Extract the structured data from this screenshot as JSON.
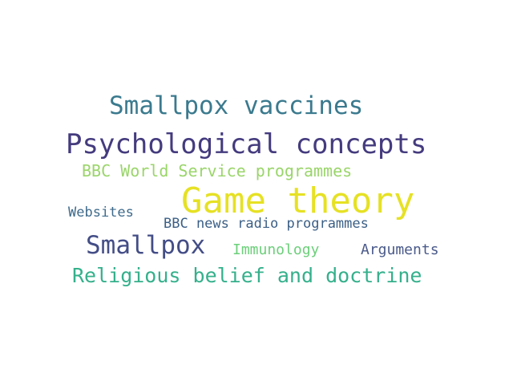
{
  "words": [
    {
      "text": "Smallpox vaccines",
      "color": "#3b7a8e"
    },
    {
      "text": "Psychological concepts",
      "color": "#443b7e"
    },
    {
      "text": "BBC World Service programmes",
      "color": "#9ad56a"
    },
    {
      "text": "Game theory",
      "color": "#e6e124"
    },
    {
      "text": "Websites",
      "color": "#3f6b8c"
    },
    {
      "text": "BBC news radio programmes",
      "color": "#3b5f86"
    },
    {
      "text": "Smallpox",
      "color": "#434d86"
    },
    {
      "text": "Immunology",
      "color": "#6ccf7a"
    },
    {
      "text": "Arguments",
      "color": "#4a5a8a"
    },
    {
      "text": "Religious belief and doctrine",
      "color": "#35b08b"
    }
  ]
}
